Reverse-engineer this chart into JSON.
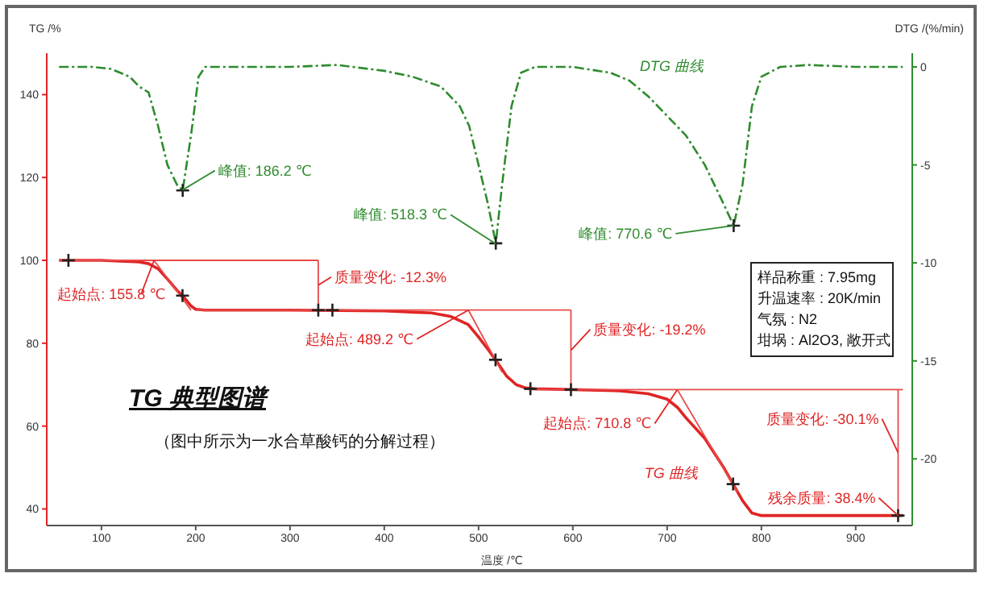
{
  "chart_data": {
    "type": "line",
    "title": "TG 典型图谱",
    "subtitle": "（图中所示为一水合草酸钙的分解过程）",
    "xlabel": "温度 /℃",
    "ylabel": "TG /%",
    "y2label": "DTG /(%/min)",
    "xlim": [
      42,
      960
    ],
    "xticks": [
      100,
      200,
      300,
      400,
      500,
      600,
      700,
      800,
      900
    ],
    "ylim": [
      36,
      150
    ],
    "yticks": [
      40,
      60,
      80,
      100,
      120,
      140
    ],
    "y2lim": [
      -23.4,
      0.7
    ],
    "y2ticks": [
      -20,
      -15,
      -10,
      -5,
      0
    ],
    "grid": false,
    "legend": false,
    "series": [
      {
        "color": "#e02424",
        "x": [
          55,
          100,
          140,
          150,
          160,
          170,
          180,
          186,
          195,
          200,
          210,
          300,
          400,
          450,
          470,
          489,
          500,
          510,
          518,
          530,
          540,
          550,
          560,
          600,
          650,
          680,
          700,
          711,
          720,
          740,
          760,
          770,
          780,
          790,
          800,
          850,
          950
        ],
        "values": [
          100,
          100,
          99.6,
          99.2,
          98,
          95.5,
          92.8,
          91.5,
          89,
          88.2,
          88,
          88,
          87.8,
          87.3,
          86.5,
          84.5,
          81.5,
          78.5,
          76,
          72,
          70,
          69.2,
          69,
          68.8,
          68.5,
          67.8,
          66.5,
          64.5,
          62,
          57,
          50,
          46,
          42,
          39,
          38.4,
          38.4,
          38.4
        ]
      },
      {
        "type": "line",
        "axis": "y2",
        "color": "#2e8b2e",
        "line_style": "dashed",
        "x": [
          55,
          90,
          110,
          130,
          140,
          150,
          160,
          170,
          180,
          186.2,
          195,
          203,
          210,
          250,
          300,
          350,
          400,
          430,
          460,
          480,
          490,
          500,
          510,
          518.3,
          525,
          535,
          545,
          560,
          600,
          640,
          660,
          680,
          700,
          720,
          740,
          760,
          770.6,
          780,
          790,
          800,
          820,
          850,
          900,
          950
        ],
        "values": [
          0,
          0,
          -0.1,
          -0.5,
          -1,
          -1.3,
          -3,
          -5,
          -6,
          -6.3,
          -3.5,
          -0.5,
          0,
          0,
          0,
          0.1,
          -0.2,
          -0.5,
          -1,
          -2,
          -3,
          -5,
          -7,
          -9,
          -6,
          -2,
          -0.3,
          0,
          0,
          -0.3,
          -0.7,
          -1.5,
          -2.5,
          -3.5,
          -5,
          -7,
          -8.1,
          -6,
          -2,
          -0.5,
          0,
          0.1,
          0,
          0
        ]
      },
      {
        "type": "line",
        "color": "#e84a4a",
        "x": [
          55,
          330
        ],
        "values": [
          100,
          100
        ]
      },
      {
        "type": "line",
        "color": "#e84a4a",
        "x": [
          200,
          598
        ],
        "values": [
          88,
          88
        ]
      },
      {
        "type": "line",
        "color": "#e84a4a",
        "x": [
          555,
          950
        ],
        "values": [
          68.8,
          68.8
        ]
      },
      {
        "type": "line",
        "color": "#e84a4a",
        "x": [
          155.8,
          195
        ],
        "values": [
          100,
          88
        ]
      },
      {
        "type": "line",
        "color": "#e84a4a",
        "x": [
          489.2,
          525
        ],
        "values": [
          88,
          73
        ]
      },
      {
        "type": "line",
        "color": "#e84a4a",
        "x": [
          710.8,
          775
        ],
        "values": [
          68.8,
          44
        ]
      },
      {
        "type": "line",
        "color": "#e84a4a",
        "x": [
          330,
          330
        ],
        "values": [
          100,
          88
        ]
      },
      {
        "type": "line",
        "color": "#e84a4a",
        "x": [
          598,
          598
        ],
        "values": [
          88,
          68.8
        ]
      },
      {
        "type": "line",
        "color": "#e84a4a",
        "x": [
          945,
          945
        ],
        "values": [
          68.8,
          38.4
        ]
      },
      {
        "type": "scatter",
        "marker": "cross",
        "color": "#222222",
        "x": [
          65,
          186,
          330,
          345,
          518,
          555,
          598,
          770,
          945
        ],
        "values": [
          100,
          91.5,
          88,
          88,
          76,
          69,
          68.8,
          46,
          38.4
        ]
      },
      {
        "type": "scatter",
        "axis": "y2",
        "marker": "cross",
        "color": "#222222",
        "x": [
          186.2,
          518.3,
          770.6
        ],
        "values": [
          -6.3,
          -9,
          -8.1
        ]
      }
    ],
    "annotations": [
      {
        "text": "峰值: 186.2 ℃",
        "x": 186.2,
        "y": 117
      },
      {
        "text": "峰值: 518.3 ℃",
        "x": 518.3,
        "y": 104
      },
      {
        "text": "峰值: 770.6 ℃",
        "x": 770.6,
        "y": 108.4
      },
      {
        "text": "起始点: 155.8 ℃",
        "x": 155.8,
        "y": 100
      },
      {
        "text": "质量变化: -12.3%",
        "x": 330,
        "y": 94
      },
      {
        "text": "起始点: 489.2 ℃",
        "x": 489.2,
        "y": 88
      },
      {
        "text": "质量变化: -19.2%",
        "x": 598,
        "y": 78.3
      },
      {
        "text": "起始点: 710.8 ℃",
        "x": 710.8,
        "y": 68.8
      },
      {
        "text": "TG 曲线",
        "x": 770,
        "y": 46
      },
      {
        "text": "质量变化: -30.1%",
        "x": 945,
        "y": 53.6
      },
      {
        "text": "残余质量: 38.4%",
        "x": 945,
        "y": 38.4
      },
      "DTG 曲线",
      "样品称重 : 7.95mg",
      "升温速率 : 20K/min",
      "气氛 : N2",
      "坩埚 : Al2O3, 敞开式"
    ]
  }
}
